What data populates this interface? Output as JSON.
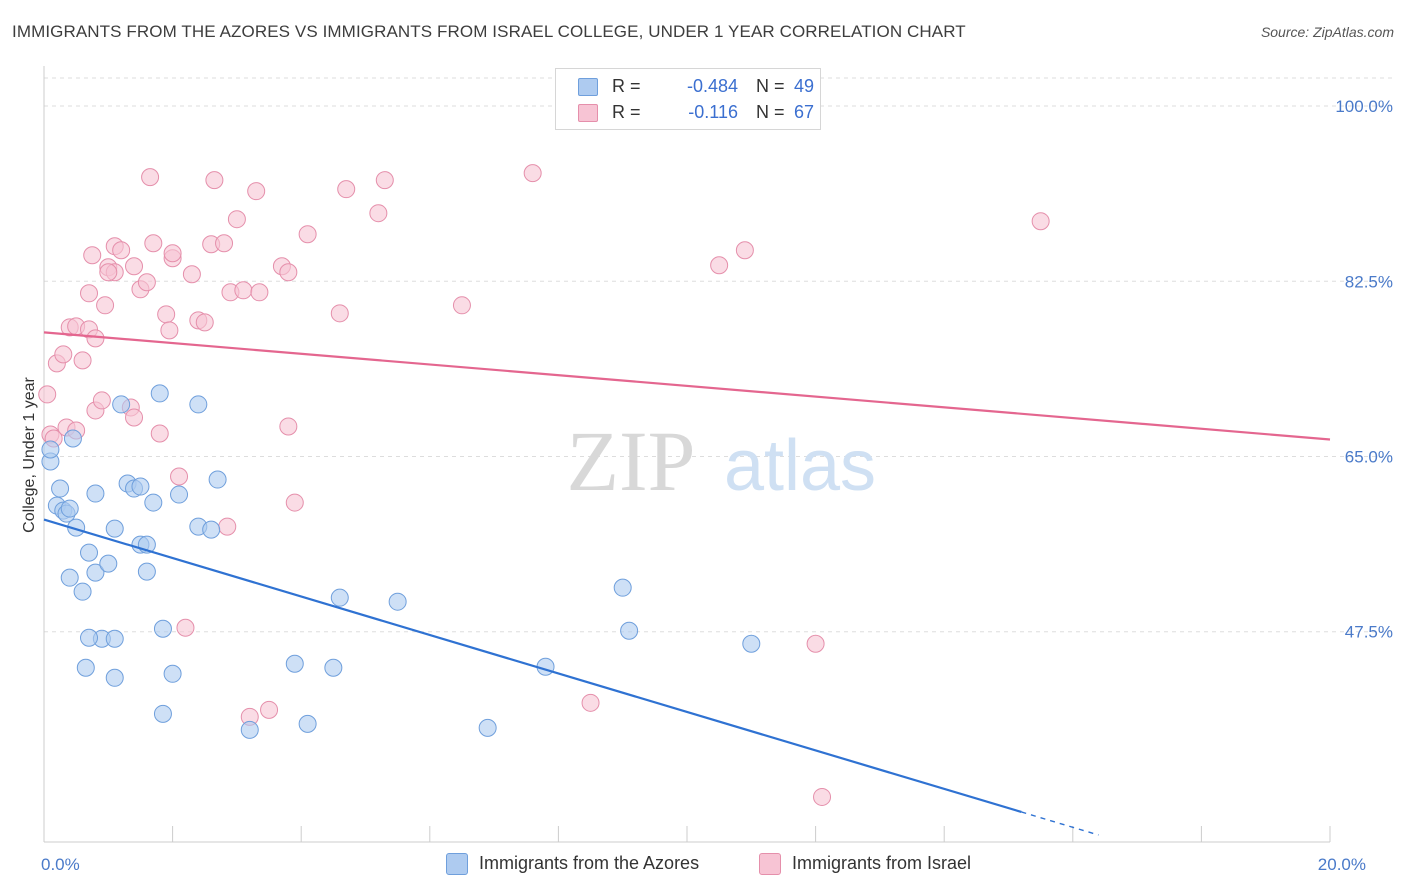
{
  "title": "IMMIGRANTS FROM THE AZORES VS IMMIGRANTS FROM ISRAEL COLLEGE, UNDER 1 YEAR CORRELATION CHART",
  "source": "Source: ZipAtlas.com",
  "watermark": {
    "zip": "ZIP",
    "atlas": "atlas"
  },
  "colors": {
    "azores_fill": "#aecbf0",
    "azores_stroke": "#6f9fdc",
    "azores_line": "#2f72d2",
    "israel_fill": "#f7c4d4",
    "israel_stroke": "#e58fab",
    "israel_line": "#e4668f",
    "tick_text": "#4a7ac9",
    "grid": "#dddddd"
  },
  "legend": {
    "rows": [
      {
        "r_label": "R =",
        "r_value": "-0.484",
        "n_label": "N =",
        "n_value": "49"
      },
      {
        "r_label": "R =",
        "r_value": "-0.116",
        "n_label": "N =",
        "n_value": "67"
      }
    ]
  },
  "bottom_legend": [
    "Immigrants from the Azores",
    "Immigrants from Israel"
  ],
  "chart_data": {
    "type": "scatter",
    "title": "IMMIGRANTS FROM THE AZORES VS IMMIGRANTS FROM ISRAEL COLLEGE, UNDER 1 YEAR CORRELATION CHART",
    "xlabel": "",
    "ylabel": "College, Under 1 year",
    "xlim": [
      0,
      20
    ],
    "ylim": [
      26.5,
      104
    ],
    "x_tick_labels": [
      {
        "value": 0,
        "label": "0.0%"
      },
      {
        "value": 20,
        "label": "20.0%"
      }
    ],
    "y_ticks": [
      {
        "value": 100,
        "label": "100.0%"
      },
      {
        "value": 82.5,
        "label": "82.5%"
      },
      {
        "value": 65,
        "label": "65.0%"
      },
      {
        "value": 47.5,
        "label": "47.5%"
      }
    ],
    "series": [
      {
        "name": "Immigrants from the Azores",
        "r": -0.484,
        "n": 49,
        "trend": {
          "x0": 0,
          "y0": 58.7,
          "x1": 15.2,
          "y1": 29.5,
          "dash_x1": 16.4,
          "dash_y1": 27.2
        },
        "points": [
          [
            0.1,
            64.5
          ],
          [
            0.1,
            65.7
          ],
          [
            0.2,
            60.1
          ],
          [
            0.25,
            61.8
          ],
          [
            0.3,
            59.6
          ],
          [
            0.35,
            59.3
          ],
          [
            0.4,
            59.8
          ],
          [
            0.45,
            66.8
          ],
          [
            0.5,
            57.9
          ],
          [
            0.6,
            51.5
          ],
          [
            0.65,
            43.9
          ],
          [
            0.7,
            55.4
          ],
          [
            0.8,
            61.3
          ],
          [
            0.8,
            53.4
          ],
          [
            0.9,
            46.8
          ],
          [
            1.0,
            54.3
          ],
          [
            1.1,
            57.8
          ],
          [
            1.1,
            46.8
          ],
          [
            1.3,
            62.3
          ],
          [
            1.4,
            61.8
          ],
          [
            1.5,
            62.0
          ],
          [
            1.5,
            56.2
          ],
          [
            1.6,
            56.2
          ],
          [
            1.6,
            53.5
          ],
          [
            1.7,
            60.4
          ],
          [
            1.8,
            71.3
          ],
          [
            1.85,
            39.3
          ],
          [
            1.85,
            47.8
          ],
          [
            2.0,
            43.3
          ],
          [
            2.1,
            61.2
          ],
          [
            2.4,
            58.0
          ],
          [
            2.6,
            57.7
          ],
          [
            2.7,
            62.7
          ],
          [
            1.2,
            70.2
          ],
          [
            2.4,
            70.2
          ],
          [
            3.2,
            37.7
          ],
          [
            3.9,
            44.3
          ],
          [
            4.1,
            38.3
          ],
          [
            4.5,
            43.9
          ],
          [
            4.6,
            50.9
          ],
          [
            5.5,
            50.5
          ],
          [
            6.9,
            37.9
          ],
          [
            7.8,
            44.0
          ],
          [
            9.0,
            51.9
          ],
          [
            9.1,
            47.6
          ],
          [
            11.0,
            46.3
          ],
          [
            0.4,
            52.9
          ],
          [
            0.7,
            46.9
          ],
          [
            1.1,
            42.9
          ]
        ]
      },
      {
        "name": "Immigrants from Israel",
        "r": -0.116,
        "n": 67,
        "trend": {
          "x0": 0,
          "y0": 77.4,
          "x1": 20,
          "y1": 66.7
        },
        "points": [
          [
            0.05,
            71.2
          ],
          [
            0.1,
            67.2
          ],
          [
            0.15,
            66.8
          ],
          [
            0.2,
            74.3
          ],
          [
            0.3,
            75.2
          ],
          [
            0.35,
            67.9
          ],
          [
            0.4,
            77.9
          ],
          [
            0.5,
            78.0
          ],
          [
            0.6,
            74.6
          ],
          [
            0.7,
            77.7
          ],
          [
            0.7,
            81.3
          ],
          [
            0.75,
            85.1
          ],
          [
            0.8,
            76.8
          ],
          [
            0.8,
            69.6
          ],
          [
            0.9,
            70.6
          ],
          [
            0.95,
            80.1
          ],
          [
            1.0,
            83.9
          ],
          [
            1.1,
            83.4
          ],
          [
            1.1,
            86.0
          ],
          [
            1.2,
            85.6
          ],
          [
            1.35,
            69.9
          ],
          [
            1.4,
            68.9
          ],
          [
            1.5,
            81.7
          ],
          [
            1.6,
            82.4
          ],
          [
            1.65,
            92.9
          ],
          [
            1.7,
            86.3
          ],
          [
            1.8,
            67.3
          ],
          [
            1.9,
            79.2
          ],
          [
            1.95,
            77.6
          ],
          [
            2.0,
            84.8
          ],
          [
            2.0,
            85.3
          ],
          [
            2.1,
            63.0
          ],
          [
            2.2,
            47.9
          ],
          [
            2.3,
            83.2
          ],
          [
            2.4,
            78.6
          ],
          [
            2.5,
            78.4
          ],
          [
            2.6,
            86.2
          ],
          [
            2.65,
            92.6
          ],
          [
            2.8,
            86.3
          ],
          [
            2.85,
            58.0
          ],
          [
            2.9,
            81.4
          ],
          [
            3.0,
            88.7
          ],
          [
            3.1,
            81.6
          ],
          [
            3.2,
            39.0
          ],
          [
            3.3,
            91.5
          ],
          [
            3.35,
            81.4
          ],
          [
            3.5,
            39.7
          ],
          [
            3.7,
            84.0
          ],
          [
            3.8,
            83.4
          ],
          [
            3.8,
            68.0
          ],
          [
            3.9,
            60.4
          ],
          [
            4.1,
            87.2
          ],
          [
            4.6,
            79.3
          ],
          [
            4.7,
            91.7
          ],
          [
            5.2,
            89.3
          ],
          [
            5.3,
            92.6
          ],
          [
            6.5,
            80.1
          ],
          [
            7.6,
            93.3
          ],
          [
            8.5,
            40.4
          ],
          [
            10.5,
            84.1
          ],
          [
            10.9,
            85.6
          ],
          [
            12.0,
            46.3
          ],
          [
            12.1,
            31.0
          ],
          [
            15.5,
            88.5
          ],
          [
            1.0,
            83.4
          ],
          [
            0.5,
            67.6
          ],
          [
            1.4,
            84.0
          ]
        ]
      }
    ]
  }
}
